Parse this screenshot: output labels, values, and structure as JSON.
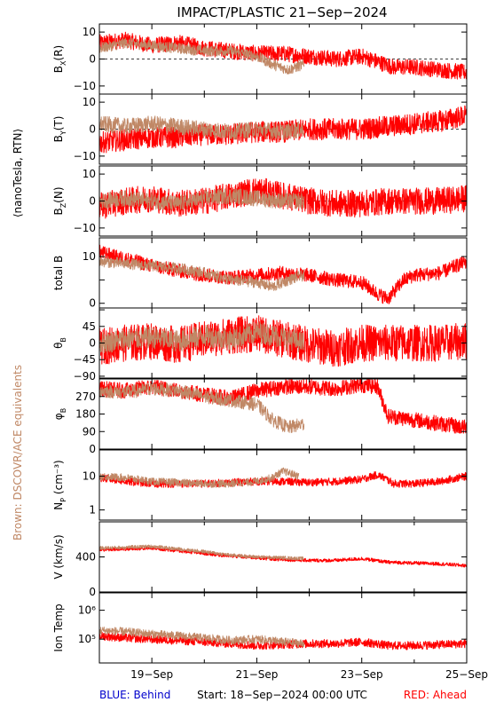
{
  "title": "IMPACT/PLASTIC   21−Sep−2024",
  "left_label": "⟨nanoTesla, RTN⟩",
  "brown_label": "Brown: DSCOVR/ACE equivalents",
  "footer": {
    "behind": "BLUE: Behind",
    "start": "Start: 18−Sep−2024 00:00 UTC",
    "ahead": "RED: Ahead"
  },
  "colors": {
    "ahead": "#ff0000",
    "brown": "#c08866",
    "behind": "#0000cc"
  },
  "chart_data": {
    "type": "line",
    "x_range_days": [
      18,
      25
    ],
    "x_ticks": [
      {
        "day": 19,
        "label": "19−Sep"
      },
      {
        "day": 21,
        "label": "21−Sep"
      },
      {
        "day": 23,
        "label": "23−Sep"
      },
      {
        "day": 25,
        "label": "25−Sep"
      }
    ],
    "panels": [
      {
        "key": "bx",
        "label": "B",
        "sub": "X",
        "suffix": "(R)",
        "ylim": [
          -13,
          13
        ],
        "ticks": [
          10,
          0,
          -10
        ],
        "tick_labels": [
          "10",
          "0",
          "−10"
        ],
        "zero_line": true,
        "series": [
          {
            "name": "ahead",
            "x": [
              18.0,
              18.5,
              19.0,
              19.5,
              20.0,
              20.5,
              21.0,
              21.5,
              22.0,
              22.5,
              23.0,
              23.3,
              23.6,
              24.0,
              24.5,
              25.0
            ],
            "y": [
              6,
              7,
              5,
              6,
              4,
              3,
              2,
              2,
              1,
              0,
              1,
              -1,
              -3,
              -3,
              -4,
              -5
            ],
            "spread": 3
          },
          {
            "name": "brown",
            "x": [
              18.0,
              18.5,
              19.0,
              19.5,
              20.0,
              20.5,
              21.0,
              21.3,
              21.6,
              21.9
            ],
            "y": [
              4,
              6,
              5,
              4,
              3,
              3,
              1,
              -2,
              -4,
              -2
            ],
            "spread": 2
          }
        ]
      },
      {
        "key": "by",
        "label": "B",
        "sub": "Y",
        "suffix": "(T)",
        "ylim": [
          -13,
          13
        ],
        "ticks": [
          10,
          0,
          -10
        ],
        "tick_labels": [
          "10",
          "0",
          "−10"
        ],
        "zero_line": true,
        "series": [
          {
            "name": "ahead",
            "x": [
              18.0,
              18.5,
              19.0,
              19.5,
              20.0,
              20.5,
              21.0,
              21.5,
              22.0,
              22.5,
              23.0,
              23.5,
              24.0,
              24.5,
              25.0
            ],
            "y": [
              -5,
              -4,
              -3,
              -3,
              -2,
              -2,
              -1,
              -1,
              0,
              0,
              0,
              1,
              2,
              3,
              5
            ],
            "spread": 4
          },
          {
            "name": "brown",
            "x": [
              18.0,
              18.5,
              19.0,
              19.5,
              20.0,
              20.5,
              21.0,
              21.5,
              21.9
            ],
            "y": [
              2,
              1,
              2,
              1,
              0,
              -1,
              0,
              -1,
              0
            ],
            "spread": 3
          }
        ]
      },
      {
        "key": "bz",
        "label": "B",
        "sub": "Z",
        "suffix": "(N)",
        "ylim": [
          -13,
          13
        ],
        "ticks": [
          10,
          0,
          -10
        ],
        "tick_labels": [
          "10",
          "0",
          "−10"
        ],
        "zero_line": true,
        "series": [
          {
            "name": "ahead",
            "x": [
              18.0,
              18.5,
              19.0,
              19.5,
              20.0,
              20.5,
              21.0,
              21.5,
              22.0,
              22.5,
              23.0,
              23.5,
              24.0,
              24.5,
              25.0
            ],
            "y": [
              -2,
              0,
              1,
              -1,
              0,
              2,
              4,
              2,
              0,
              -1,
              -1,
              0,
              0,
              0,
              1
            ],
            "spread": 5
          },
          {
            "name": "brown",
            "x": [
              18.0,
              18.5,
              19.0,
              19.5,
              20.0,
              20.5,
              21.0,
              21.5,
              21.9
            ],
            "y": [
              0,
              1,
              0,
              -1,
              1,
              2,
              1,
              0,
              0
            ],
            "spread": 3
          }
        ]
      },
      {
        "key": "btot",
        "label": "total B",
        "sub": "",
        "suffix": "",
        "ylim": [
          -1,
          14
        ],
        "ticks": [
          10,
          5,
          0
        ],
        "tick_labels": [
          "10",
          "",
          "0"
        ],
        "zero_line": false,
        "series": [
          {
            "name": "ahead",
            "x": [
              18.0,
              18.3,
              18.7,
              19.0,
              19.5,
              20.0,
              20.5,
              21.0,
              21.5,
              22.0,
              22.5,
              23.0,
              23.3,
              23.5,
              23.8,
              24.0,
              24.5,
              25.0
            ],
            "y": [
              11,
              10,
              9,
              8,
              7,
              6,
              5.5,
              6,
              6.5,
              6,
              5,
              4.5,
              2,
              1,
              5,
              6,
              6.5,
              9
            ],
            "spread": 1.5
          },
          {
            "name": "brown",
            "x": [
              18.0,
              18.5,
              19.0,
              19.5,
              20.0,
              20.5,
              21.0,
              21.3,
              21.6,
              21.9
            ],
            "y": [
              9,
              8.5,
              8,
              7.5,
              6.5,
              5,
              4.5,
              3.5,
              5,
              6
            ],
            "spread": 1.2
          }
        ]
      },
      {
        "key": "theta",
        "label": "θ",
        "sub": "B",
        "suffix": "",
        "ylim": [
          -95,
          95
        ],
        "ticks": [
          90,
          45,
          0,
          -45,
          -90
        ],
        "tick_labels": [
          "",
          "45",
          "0",
          "−45",
          "−90"
        ],
        "zero_line": false,
        "series": [
          {
            "name": "ahead",
            "x": [
              18.0,
              18.5,
              19.0,
              19.5,
              20.0,
              20.5,
              21.0,
              21.5,
              22.0,
              22.5,
              23.0,
              23.5,
              24.0,
              24.5,
              25.0
            ],
            "y": [
              -10,
              0,
              5,
              -5,
              10,
              20,
              25,
              10,
              -5,
              -15,
              0,
              0,
              0,
              0,
              5
            ],
            "spread": 50
          },
          {
            "name": "brown",
            "x": [
              18.0,
              18.5,
              19.0,
              19.5,
              20.0,
              20.5,
              21.0,
              21.5,
              21.9
            ],
            "y": [
              0,
              10,
              15,
              5,
              20,
              10,
              30,
              15,
              0
            ],
            "spread": 30
          }
        ]
      },
      {
        "key": "phi",
        "label": "φ",
        "sub": "B",
        "suffix": "",
        "ylim": [
          0,
          360
        ],
        "ticks": [
          270,
          180,
          90,
          0
        ],
        "tick_labels": [
          "270",
          "180",
          "90",
          "0"
        ],
        "zero_line": false,
        "series": [
          {
            "name": "ahead",
            "x": [
              18.0,
              18.5,
              19.0,
              19.5,
              20.0,
              20.5,
              21.0,
              21.5,
              22.0,
              22.5,
              23.0,
              23.3,
              23.5,
              24.0,
              24.5,
              25.0
            ],
            "y": [
              310,
              300,
              320,
              300,
              280,
              260,
              300,
              320,
              320,
              310,
              330,
              320,
              170,
              150,
              130,
              110
            ],
            "spread": 40
          },
          {
            "name": "brown",
            "x": [
              18.0,
              18.5,
              19.0,
              19.5,
              20.0,
              20.5,
              21.0,
              21.3,
              21.6,
              21.9
            ],
            "y": [
              300,
              290,
              310,
              300,
              270,
              250,
              230,
              150,
              110,
              130
            ],
            "spread": 35
          }
        ]
      },
      {
        "key": "np",
        "label": "N",
        "sub": "P",
        "suffix": " (cm⁻³)",
        "scale": "log",
        "ylim": [
          0.5,
          60
        ],
        "ticks": [
          10,
          1
        ],
        "tick_labels": [
          "10",
          "1"
        ],
        "zero_line": false,
        "series": [
          {
            "name": "ahead",
            "x": [
              18.0,
              18.5,
              19.0,
              19.5,
              20.0,
              20.5,
              21.0,
              21.5,
              22.0,
              22.5,
              23.0,
              23.3,
              23.6,
              24.0,
              24.5,
              25.0
            ],
            "y": [
              9,
              7,
              6,
              6,
              6,
              6.5,
              7,
              7,
              6.5,
              7,
              8,
              11,
              6,
              6,
              7,
              10
            ],
            "spread_factor": 1.3
          },
          {
            "name": "brown",
            "x": [
              18.0,
              18.5,
              19.0,
              19.5,
              20.0,
              20.5,
              21.0,
              21.3,
              21.5,
              21.8
            ],
            "y": [
              10,
              9,
              7,
              6.5,
              6,
              6,
              7,
              9,
              14,
              10
            ],
            "spread_factor": 1.3
          }
        ]
      },
      {
        "key": "v",
        "label": "V (km/s)",
        "sub": "",
        "suffix": "",
        "ylim": [
          0,
          800
        ],
        "ticks": [
          800,
          400,
          0
        ],
        "tick_labels": [
          "",
          "400",
          "0"
        ],
        "zero_line": false,
        "series": [
          {
            "name": "ahead",
            "x": [
              18.0,
              18.5,
              19.0,
              19.5,
              20.0,
              20.5,
              21.0,
              21.5,
              22.0,
              22.5,
              23.0,
              23.5,
              24.0,
              24.5,
              25.0
            ],
            "y": [
              480,
              490,
              500,
              470,
              440,
              410,
              390,
              370,
              360,
              360,
              380,
              340,
              330,
              320,
              300
            ],
            "spread": 20
          },
          {
            "name": "brown",
            "x": [
              18.0,
              18.5,
              19.0,
              19.5,
              20.0,
              20.5,
              21.0,
              21.5,
              21.9
            ],
            "y": [
              500,
              510,
              520,
              490,
              460,
              420,
              400,
              390,
              380
            ],
            "spread": 20
          }
        ]
      },
      {
        "key": "temp",
        "label": "Ion Temp",
        "sub": "",
        "suffix": "",
        "scale": "log",
        "ylim": [
          15000,
          4000000
        ],
        "ticks": [
          1000000,
          100000
        ],
        "tick_labels": [
          "10⁶",
          "10⁵"
        ],
        "zero_line": false,
        "series": [
          {
            "name": "ahead",
            "x": [
              18.0,
              18.5,
              19.0,
              19.5,
              20.0,
              20.5,
              21.0,
              21.5,
              22.0,
              22.5,
              23.0,
              23.5,
              24.0,
              24.5,
              25.0
            ],
            "y": [
              130000,
              110000,
              100000,
              90000,
              80000,
              70000,
              60000,
              65000,
              70000,
              70000,
              80000,
              60000,
              60000,
              65000,
              70000
            ],
            "spread_factor": 1.4
          },
          {
            "name": "brown",
            "x": [
              18.0,
              18.5,
              19.0,
              19.5,
              20.0,
              20.5,
              21.0,
              21.5,
              21.9
            ],
            "y": [
              200000,
              180000,
              150000,
              130000,
              110000,
              90000,
              100000,
              80000,
              70000
            ],
            "spread_factor": 1.4
          }
        ]
      }
    ]
  }
}
